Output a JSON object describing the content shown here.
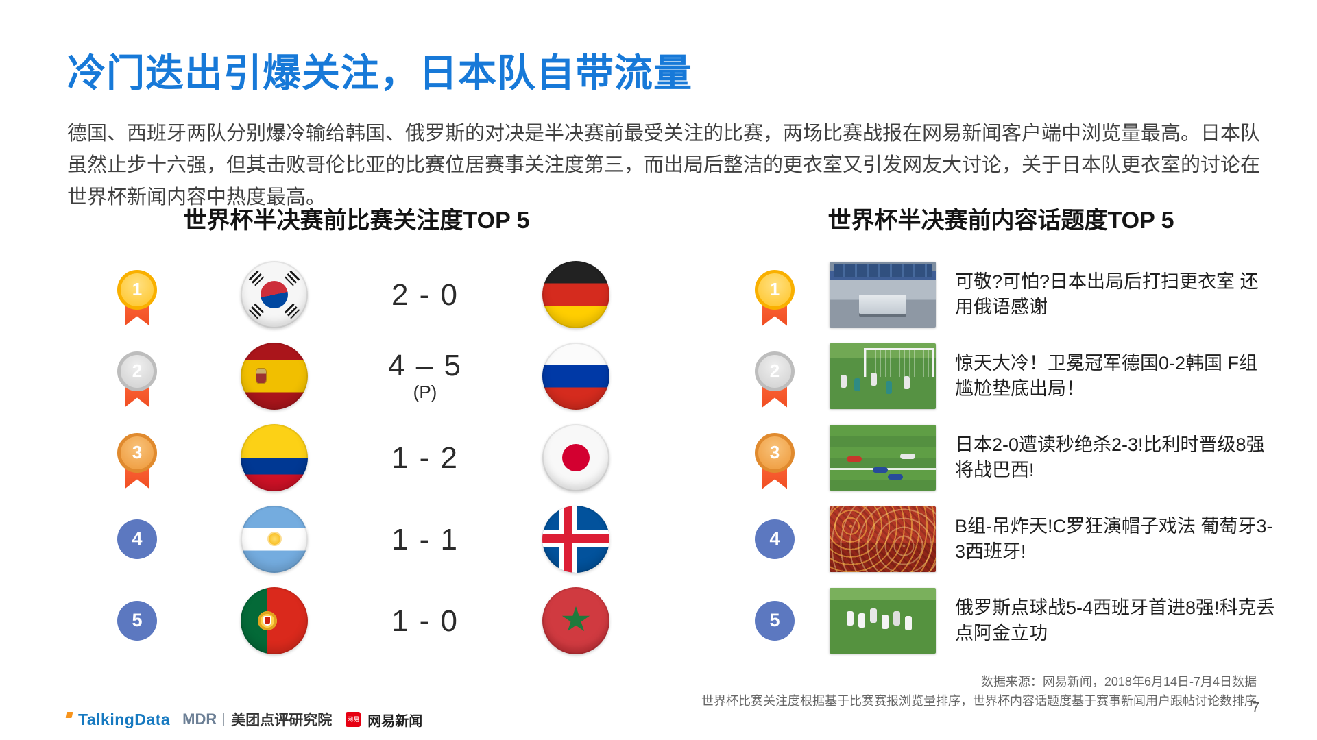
{
  "slide": {
    "title": "冷门迭出引爆关注，日本队自带流量",
    "paragraph": "德国、西班牙两队分别爆冷输给韩国、俄罗斯的对决是半决赛前最受关注的比赛，两场比赛战报在网易新闻客户端中浏览量最高。日本队虽然止步十六强，但其击败哥伦比亚的比赛位居赛事关注度第三，而出局后整洁的更衣室又引发网友大讨论，关于日本队更衣室的讨论在世界杯新闻内容中热度最高。",
    "page_number": "7"
  },
  "left": {
    "heading": "世界杯半决赛前比赛关注度TOP 5",
    "rows": [
      {
        "rank": "1",
        "home_team": "South Korea",
        "score": "2 - 0",
        "score_note": "",
        "away_team": "Germany"
      },
      {
        "rank": "2",
        "home_team": "Spain",
        "score": "4 – 5",
        "score_note": "(P)",
        "away_team": "Russia"
      },
      {
        "rank": "3",
        "home_team": "Colombia",
        "score": "1 - 2",
        "score_note": "",
        "away_team": "Japan"
      },
      {
        "rank": "4",
        "home_team": "Argentina",
        "score": "1 - 1",
        "score_note": "",
        "away_team": "Iceland"
      },
      {
        "rank": "5",
        "home_team": "Portugal",
        "score": "1 - 0",
        "score_note": "",
        "away_team": "Morocco"
      }
    ]
  },
  "right": {
    "heading": "世界杯半决赛前内容话题度TOP 5",
    "rows": [
      {
        "rank": "1",
        "thumbnail": "locker-room-photo",
        "headline": "可敬?可怕?日本出局后打扫更衣室 还用俄语感谢"
      },
      {
        "rank": "2",
        "thumbnail": "goalmouth-action-photo",
        "headline": "惊天大冷！卫冕冠军德国0-2韩国 F组尴尬垫底出局！"
      },
      {
        "rank": "3",
        "thumbnail": "pitch-players-photo",
        "headline": "日本2-0遭读秒绝杀2-3!比利时晋级8强将战巴西!"
      },
      {
        "rank": "4",
        "thumbnail": "red-crowd-photo",
        "headline": "B组-吊炸天!C罗狂演帽子戏法 葡萄牙3-3西班牙!"
      },
      {
        "rank": "5",
        "thumbnail": "celebration-photo",
        "headline": "俄罗斯点球战5-4西班牙首进8强!科克丢点阿金立功"
      }
    ]
  },
  "footer": {
    "source_line1": "数据来源：网易新闻，2018年6月14日-7月4日数据",
    "source_line2": "世界杯比赛关注度根据基于比赛赛报浏览量排序，世界杯内容话题度基于赛事新闻用户跟帖讨论数排序",
    "logos": {
      "talkingdata": "TalkingData",
      "mdr": "MDR",
      "meituan_label": "美团点评研究院",
      "netease_badge": "网易",
      "netease_label": "网易新闻"
    }
  },
  "colors": {
    "accent_blue": "#1779D8",
    "ribbon_orange": "#F04E23",
    "gold": "#FFC425",
    "silver": "#CFCFCF",
    "bronze": "#EE9838",
    "rank_blue": "#5C78C0",
    "netease_red": "#E60012"
  }
}
